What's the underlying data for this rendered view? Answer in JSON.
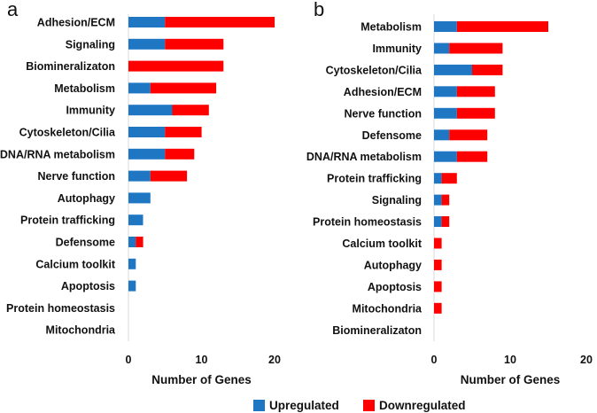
{
  "colors": {
    "upregulated": "#1f77c4",
    "downregulated": "#ff0000"
  },
  "legend": {
    "upregulated": "Upregulated",
    "downregulated": "Downregulated",
    "position": "bottom-center"
  },
  "chart_data": [
    {
      "type": "bar",
      "orientation": "horizontal",
      "stacked": true,
      "panel": "a",
      "xlabel": "Number of Genes",
      "xlim": [
        0,
        20
      ],
      "xticks": [
        "0",
        "10",
        "20"
      ],
      "grid": false,
      "categories": [
        "Adhesion/ECM",
        "Signaling",
        "Biomineralizaton",
        "Metabolism",
        "Immunity",
        "Cytoskeleton/Cilia",
        "DNA/RNA metabolism",
        "Nerve function",
        "Autophagy",
        "Protein trafficking",
        "Defensome",
        "Calcium toolkit",
        "Apoptosis",
        "Protein homeostasis",
        "Mitochondria"
      ],
      "series": [
        {
          "name": "Upregulated",
          "values": [
            5,
            5,
            0,
            3,
            6,
            5,
            5,
            3,
            3,
            2,
            1,
            1,
            1,
            0,
            0
          ]
        },
        {
          "name": "Downregulated",
          "values": [
            15,
            8,
            13,
            9,
            5,
            5,
            4,
            5,
            0,
            0,
            1,
            0,
            0,
            0,
            0
          ]
        }
      ]
    },
    {
      "type": "bar",
      "orientation": "horizontal",
      "stacked": true,
      "panel": "b",
      "xlabel": "Number of Genes",
      "xlim": [
        0,
        20
      ],
      "xticks": [
        "0",
        "10",
        "20"
      ],
      "grid": false,
      "categories": [
        "Metabolism",
        "Immunity",
        "Cytoskeleton/Cilia",
        "Adhesion/ECM",
        "Nerve function",
        "Defensome",
        "DNA/RNA metabolism",
        "Protein trafficking",
        "Signaling",
        "Protein homeostasis",
        "Calcium toolkit",
        "Autophagy",
        "Apoptosis",
        "Mitochondria",
        "Biomineralizaton"
      ],
      "series": [
        {
          "name": "Upregulated",
          "values": [
            3,
            2,
            5,
            3,
            3,
            2,
            3,
            1,
            1,
            1,
            0,
            0,
            0,
            0,
            0
          ]
        },
        {
          "name": "Downregulated",
          "values": [
            12,
            7,
            4,
            5,
            5,
            5,
            4,
            2,
            1,
            1,
            1,
            1,
            1,
            1,
            0
          ]
        }
      ]
    }
  ]
}
